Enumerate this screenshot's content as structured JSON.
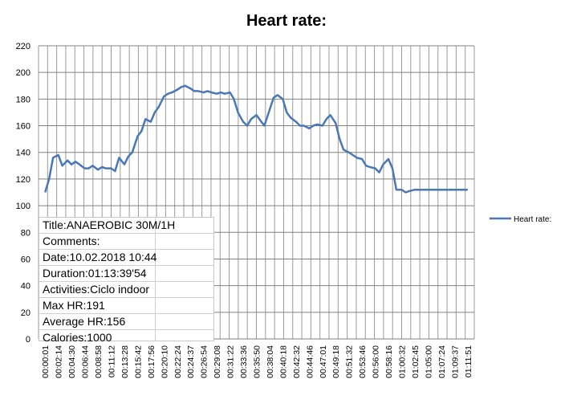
{
  "chart_data": {
    "type": "line",
    "title": "Heart rate:",
    "xlabel": "",
    "ylabel": "",
    "ylim": [
      0,
      220
    ],
    "yticks": [
      0,
      20,
      40,
      60,
      80,
      100,
      120,
      140,
      160,
      180,
      200,
      220
    ],
    "grid": true,
    "legend_position": "right",
    "line_color": "#4a78b5",
    "categories": [
      "00:00:01",
      "00:02:14",
      "00:04:30",
      "00:06:44",
      "00:08:58",
      "00:11:12",
      "00:13:28",
      "00:15:42",
      "00:17:56",
      "00:20:10",
      "00:22:24",
      "00:24:37",
      "00:26:54",
      "00:29:08",
      "00:31:22",
      "00:33:36",
      "00:35:50",
      "00:38:04",
      "00:40:18",
      "00:42:32",
      "00:44:46",
      "00:47:01",
      "00:49:18",
      "00:51:32",
      "00:53:46",
      "00:56:00",
      "00:58:16",
      "01:00:32",
      "01:02:45",
      "01:05:00",
      "01:07:24",
      "01:09:37",
      "01:11:51"
    ],
    "series": [
      {
        "name": "Heart rate:",
        "x": [
          0,
          0.3,
          0.6,
          1,
          1.3,
          1.7,
          2,
          2.3,
          2.6,
          3,
          3.3,
          3.6,
          4,
          4.3,
          4.6,
          5,
          5.3,
          5.6,
          6,
          6.3,
          6.6,
          7,
          7.3,
          7.6,
          8,
          8.3,
          8.6,
          9,
          9.3,
          9.6,
          10,
          10.3,
          10.6,
          11,
          11.3,
          11.6,
          12,
          12.3,
          12.6,
          13,
          13.3,
          13.6,
          14,
          14.3,
          14.6,
          15,
          15.3,
          15.6,
          16,
          16.3,
          16.6,
          17,
          17.3,
          17.6,
          18,
          18.3,
          18.6,
          19,
          19.3,
          19.6,
          20,
          20.3,
          20.6,
          21,
          21.3,
          21.6,
          22,
          22.3,
          22.6,
          23,
          23.3,
          23.6,
          24,
          24.3,
          24.6,
          25,
          25.3,
          25.6,
          26,
          26.3,
          26.6,
          27,
          27.3,
          27.6,
          28,
          28.3,
          28.6,
          29,
          29.3,
          29.6,
          30,
          30.3,
          30.6,
          31,
          31.3,
          31.6,
          32
        ],
        "values": [
          110,
          120,
          136,
          138,
          130,
          134,
          131,
          133,
          131,
          128,
          128,
          130,
          127,
          129,
          128,
          128,
          126,
          136,
          131,
          137,
          140,
          152,
          156,
          165,
          163,
          170,
          174,
          182,
          184,
          185,
          187,
          189,
          190,
          188,
          186,
          186,
          185,
          186,
          185,
          184,
          185,
          184,
          185,
          180,
          170,
          163,
          160,
          165,
          168,
          164,
          160,
          172,
          181,
          183,
          180,
          170,
          166,
          163,
          160,
          160,
          158,
          160,
          161,
          160,
          165,
          168,
          162,
          150,
          142,
          140,
          138,
          136,
          135,
          130,
          129,
          128,
          125,
          131,
          135,
          128,
          112,
          112,
          110,
          111,
          112,
          112,
          112,
          112,
          112,
          112,
          112,
          112,
          112,
          112,
          112,
          112,
          112
        ]
      }
    ]
  },
  "info_box": {
    "rows": [
      "Title:ANAEROBIC 30M/1H",
      "Comments:",
      "Date:10.02.2018 10:44",
      "Duration:01:13:39'54",
      "Activities:Ciclo indoor",
      "Max HR:191",
      "Average HR:156",
      "Calories:1000"
    ]
  }
}
